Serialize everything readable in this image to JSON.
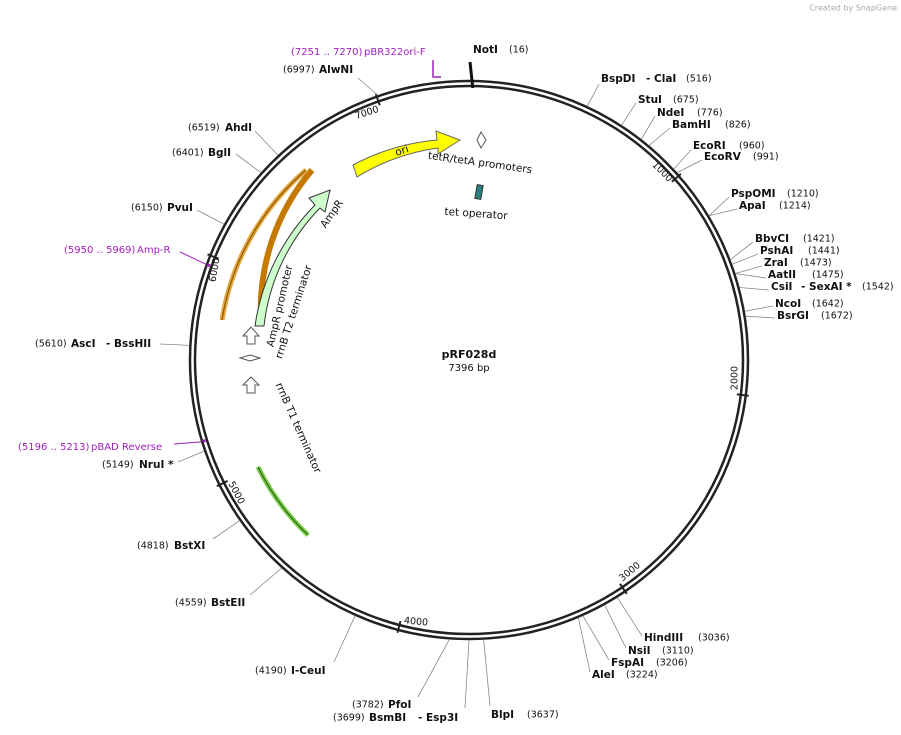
{
  "header": "Created by SnapGene",
  "plasmid": {
    "name": "pRF028d",
    "length": "7396 bp"
  },
  "ruler": [
    "1000",
    "2000",
    "3000",
    "4000",
    "5000",
    "6000",
    "7000"
  ],
  "features": [
    "ori",
    "AmpR",
    "AmpR promoter",
    "rrnB T2 terminator",
    "rrnB T1 terminator",
    "tetR/tetA promoters",
    "tet operator"
  ],
  "sites": [
    {
      "name": "NotI",
      "position": "(16)"
    },
    {
      "name": "BspDI",
      "name2": "- ClaI",
      "position": "(516)"
    },
    {
      "name": "StuI",
      "position": "(675)"
    },
    {
      "name": "NdeI",
      "position": "(776)"
    },
    {
      "name": "BamHI",
      "position": "(826)"
    },
    {
      "name": "EcoRI",
      "position": "(960)"
    },
    {
      "name": "EcoRV",
      "position": "(991)"
    },
    {
      "name": "PspOMI",
      "position": "(1210)"
    },
    {
      "name": "ApaI",
      "position": "(1214)"
    },
    {
      "name": "BbvCI",
      "position": "(1421)"
    },
    {
      "name": "PshAI",
      "position": "(1441)"
    },
    {
      "name": "ZraI",
      "position": "(1473)"
    },
    {
      "name": "AatII",
      "position": "(1475)"
    },
    {
      "name": "CsiI",
      "name2": "- SexAI *",
      "position": "(1542)"
    },
    {
      "name": "NcoI",
      "position": "(1642)"
    },
    {
      "name": "BsrGI",
      "position": "(1672)"
    },
    {
      "name": "HindIII",
      "position": "(3036)"
    },
    {
      "name": "NsiI",
      "position": "(3110)"
    },
    {
      "name": "FspAI",
      "position": "(3206)"
    },
    {
      "name": "AleI",
      "position": "(3224)"
    },
    {
      "name": "BlpI",
      "position": "(3637)"
    },
    {
      "name": "PfoI",
      "position": "(3782)"
    },
    {
      "name": "BsmBI",
      "name2": "- Esp3I",
      "position": "(3699)"
    },
    {
      "name": "I-CeuI",
      "position": "(4190)"
    },
    {
      "name": "BstEII",
      "position": "(4559)"
    },
    {
      "name": "BstXI",
      "position": "(4818)"
    },
    {
      "name": "NruI *",
      "position": "(5149)"
    },
    {
      "name": "AscI",
      "name2": "- BssHII",
      "position": "(5610)"
    },
    {
      "name": "PvuI",
      "position": "(6150)"
    },
    {
      "name": "BglI",
      "position": "(6401)"
    },
    {
      "name": "AhdI",
      "position": "(6519)"
    },
    {
      "name": "AlwNI",
      "position": "(6997)"
    }
  ],
  "primers": [
    {
      "name": "pBR322ori-F",
      "position": "(7251 .. 7270)"
    },
    {
      "name": "Amp-R",
      "position": "(5950 .. 5969)"
    },
    {
      "name": "pBAD Reverse",
      "position": "(5196 .. 5213)"
    }
  ]
}
